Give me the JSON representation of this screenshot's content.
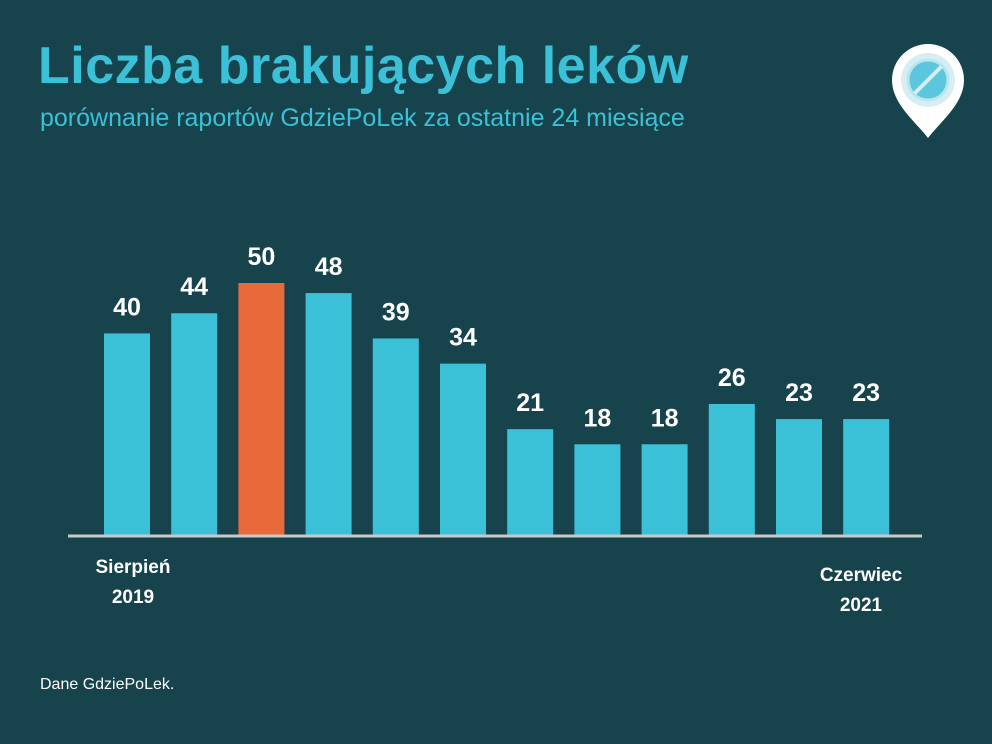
{
  "title": "Liczba brakujących leków",
  "subtitle": "porównanie raportów GdziePoLek za ostatnie 24 miesiące",
  "source": "Dane GdziePoLek.",
  "axis": {
    "start_month": "Sierpień",
    "start_year": "2019",
    "end_month": "Czerwiec",
    "end_year": "2021"
  },
  "colors": {
    "background": "#17434d",
    "bar": "#3bc1d7",
    "highlight": "#e86a3a",
    "baseline": "#c8c8c8"
  },
  "chart_data": {
    "type": "bar",
    "title": "Liczba brakujących leków",
    "subtitle": "porównanie raportów GdziePoLek za ostatnie 24 miesiące",
    "xlabel": "",
    "ylabel": "",
    "values": [
      40,
      44,
      50,
      48,
      39,
      34,
      21,
      18,
      18,
      26,
      23,
      23
    ],
    "highlight_index": 2,
    "ylim": [
      0,
      50
    ],
    "grid": false,
    "legend": "none"
  }
}
